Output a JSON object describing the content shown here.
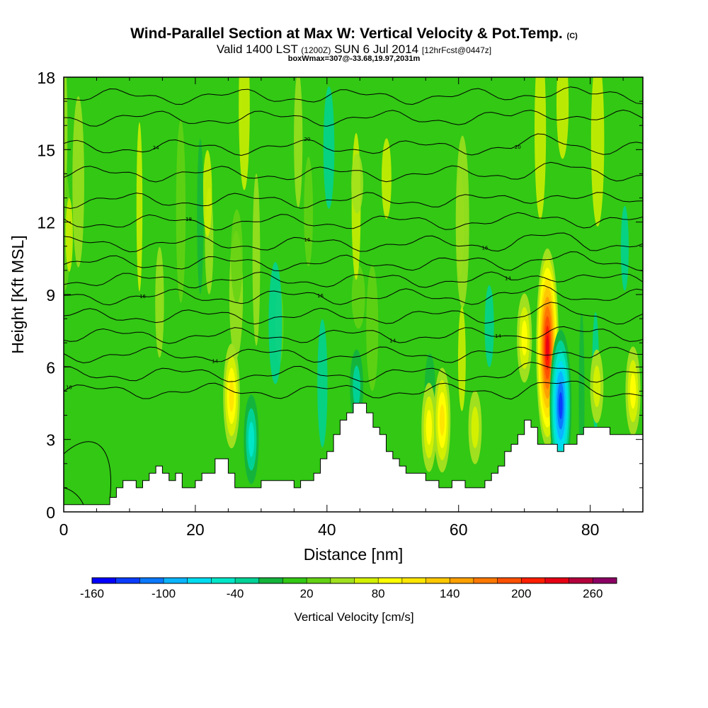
{
  "chart_data": {
    "type": "heatmap",
    "title": "Wind-Parallel Section at Max W: Vertical Velocity & Pot.Temp.",
    "title_mark": "(C)",
    "subtitle_main": "Valid 1400 LST",
    "subtitle_utc": "(1200Z)",
    "subtitle_date": "SUN 6 Jul 2014",
    "subtitle_fcst": "[12hrFcst@0447z]",
    "box_info": "boxWmax=307@-33.68,19.97,2031m",
    "xlabel": "Distance [nm]",
    "ylabel": "Height [Kft MSL]",
    "xlim": [
      0,
      88
    ],
    "ylim": [
      0,
      18
    ],
    "x_ticks": [
      "0",
      "20",
      "40",
      "60",
      "80"
    ],
    "y_ticks": [
      "0",
      "3",
      "6",
      "9",
      "12",
      "15",
      "18"
    ],
    "colorbar": {
      "title": "Vertical Velocity [cm/s]",
      "tick_labels": [
        "-160",
        "-100",
        "-40",
        "20",
        "80",
        "140",
        "200",
        "260"
      ],
      "colors": [
        "#0000ff",
        "#0a3cff",
        "#0a78ff",
        "#0ab4ff",
        "#00dcf0",
        "#00e6c8",
        "#00d296",
        "#14b43c",
        "#32c814",
        "#64d214",
        "#a0e01e",
        "#d2f000",
        "#ffff00",
        "#ffe600",
        "#ffc800",
        "#ffa000",
        "#ff7800",
        "#ff5000",
        "#ff1e00",
        "#e60014",
        "#b4003c",
        "#8c0064"
      ]
    },
    "background_value_cm_s": 10,
    "cores": [
      {
        "x_nm": 25.5,
        "z_kft": 4.8,
        "w_cm_s": 110
      },
      {
        "x_nm": 28.5,
        "z_kft": 3.0,
        "w_cm_s": -60
      },
      {
        "x_nm": 55.5,
        "z_kft": 3.5,
        "w_cm_s": 80
      },
      {
        "x_nm": 57.5,
        "z_kft": 3.8,
        "w_cm_s": 100
      },
      {
        "x_nm": 62.5,
        "z_kft": 3.5,
        "w_cm_s": 70
      },
      {
        "x_nm": 70.0,
        "z_kft": 7.2,
        "w_cm_s": 90
      },
      {
        "x_nm": 73.5,
        "z_kft": 6.8,
        "w_cm_s": 230
      },
      {
        "x_nm": 75.5,
        "z_kft": 4.4,
        "w_cm_s": -140
      },
      {
        "x_nm": 44.5,
        "z_kft": 5.2,
        "w_cm_s": -40
      },
      {
        "x_nm": 86.5,
        "z_kft": 5.0,
        "w_cm_s": 80
      },
      {
        "x_nm": 81.0,
        "z_kft": 5.2,
        "w_cm_s": 60
      }
    ],
    "terrain_kft": {
      "x_nm": [
        0,
        6,
        7,
        8,
        9,
        10,
        11,
        12,
        13,
        14,
        15,
        16,
        17,
        18,
        19,
        20,
        21,
        22,
        23,
        24,
        25,
        26,
        27,
        28,
        29,
        30,
        31,
        32,
        33,
        34,
        35,
        36,
        37,
        38,
        39,
        40,
        41,
        42,
        43,
        44,
        45,
        46,
        47,
        48,
        49,
        50,
        51,
        52,
        53,
        54,
        55,
        56,
        57,
        58,
        59,
        60,
        61,
        62,
        63,
        64,
        65,
        66,
        67,
        68,
        69,
        70,
        71,
        72,
        73,
        74,
        75,
        76,
        77,
        78,
        79,
        80,
        81,
        82,
        83,
        84,
        85,
        86,
        87,
        88
      ],
      "z_kft": [
        0.3,
        0.3,
        0.6,
        1.0,
        1.3,
        1.3,
        1.0,
        1.3,
        1.6,
        1.9,
        1.6,
        1.3,
        1.6,
        1.0,
        1.0,
        1.3,
        1.6,
        1.6,
        2.2,
        2.2,
        1.6,
        1.0,
        1.0,
        1.0,
        1.0,
        1.3,
        1.3,
        1.3,
        1.3,
        1.3,
        1.0,
        1.3,
        1.3,
        1.6,
        2.2,
        2.5,
        3.2,
        3.8,
        4.1,
        4.5,
        4.5,
        4.1,
        3.5,
        3.2,
        2.5,
        2.2,
        1.9,
        1.6,
        1.6,
        1.6,
        1.3,
        1.3,
        1.0,
        1.0,
        1.3,
        1.3,
        1.0,
        1.0,
        1.0,
        1.3,
        1.6,
        1.9,
        2.5,
        2.8,
        3.2,
        3.8,
        3.5,
        2.8,
        2.8,
        2.8,
        2.5,
        2.8,
        2.8,
        3.2,
        3.5,
        3.5,
        3.5,
        3.5,
        3.2,
        3.2,
        3.2,
        3.2,
        3.2,
        3.2
      ]
    },
    "pot_temp_contours": [
      {
        "base_kft": 5.0,
        "label": "18",
        "label_x_nm": 0.8
      },
      {
        "base_kft": 5.7
      },
      {
        "base_kft": 6.5,
        "label": "14",
        "label_x_nm": 23
      },
      {
        "base_kft": 7.3,
        "label": "14",
        "label_x_nm": 50,
        "label2": "14",
        "label2_x_nm": 66
      },
      {
        "base_kft": 8.1
      },
      {
        "base_kft": 8.9,
        "label": "16",
        "label_x_nm": 12,
        "label2": "16",
        "label2_x_nm": 39
      },
      {
        "base_kft": 9.6,
        "label": "14",
        "label_x_nm": 67.5
      },
      {
        "base_kft": 10.3
      },
      {
        "base_kft": 11.1,
        "label": "16",
        "label_x_nm": 37,
        "label2": "16",
        "label2_x_nm": 64
      },
      {
        "base_kft": 12.0,
        "label": "18",
        "label_x_nm": 19
      },
      {
        "base_kft": 12.9
      },
      {
        "base_kft": 14.0
      },
      {
        "base_kft": 15.1,
        "label": "24",
        "label_x_nm": 14,
        "label2": "20",
        "label2_x_nm": 37,
        "label3": "20",
        "label3_x_nm": 69
      },
      {
        "base_kft": 16.3
      },
      {
        "base_kft": 17.2
      }
    ]
  }
}
